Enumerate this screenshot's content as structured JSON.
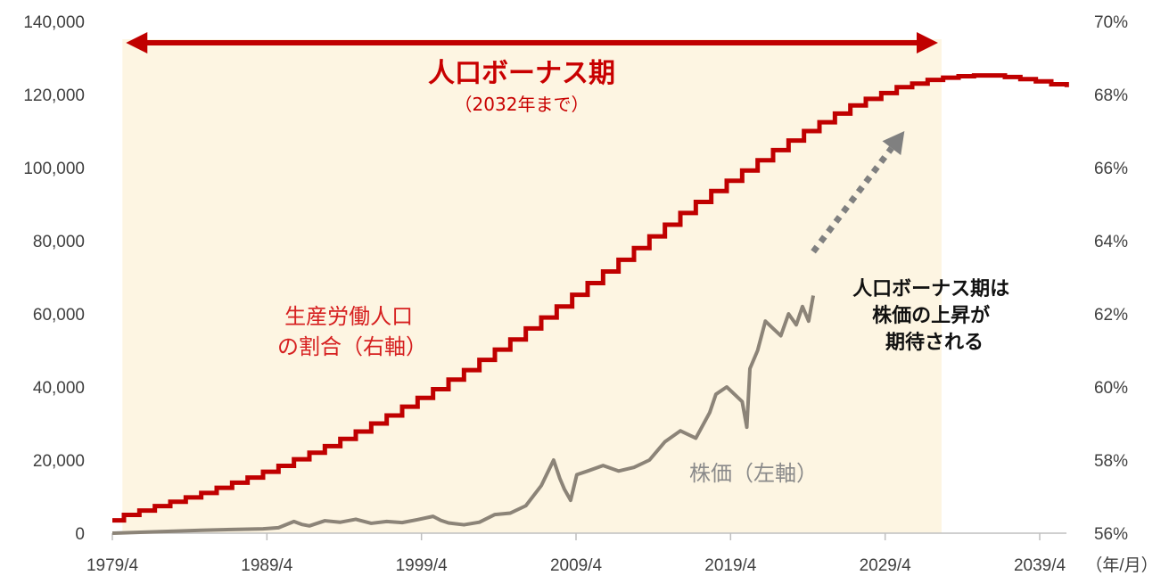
{
  "chart_data": {
    "type": "line",
    "title": "",
    "xlabel": "",
    "x_unit_label": "（年/月）",
    "x_ticks": [
      "1979/4",
      "1989/4",
      "1999/4",
      "2009/4",
      "2019/4",
      "2029/4",
      "2039/4"
    ],
    "x_range": [
      1979.25,
      2041.0
    ],
    "y_left": {
      "range": [
        0,
        140000
      ],
      "ticks": [
        "0",
        "20,000",
        "40,000",
        "60,000",
        "80,000",
        "100,000",
        "120,000",
        "140,000"
      ]
    },
    "y_right": {
      "range": [
        56,
        70
      ],
      "ticks": [
        "56%",
        "58%",
        "60%",
        "62%",
        "64%",
        "66%",
        "68%",
        "70%"
      ]
    },
    "grid": false,
    "highlight_period": {
      "label": "人口ボーナス期",
      "sublabel": "（2032年まで）",
      "x_start": 1979.9,
      "x_end": 2032.9,
      "color": "#fdf5e2"
    },
    "annotation": {
      "lines": [
        "人口ボーナス期は",
        "株価の上昇が",
        "期待される"
      ],
      "arrow_from": [
        2024.6,
        63.7
      ],
      "arrow_to": [
        2030.5,
        67.0
      ]
    },
    "series": [
      {
        "name": "生産労働人口の割合（右軸）",
        "axis": "right",
        "color": "#c00000",
        "style": "step",
        "x": [
          1979.25,
          1980,
          1981,
          1982,
          1983,
          1984,
          1985,
          1986,
          1987,
          1988,
          1989,
          1990,
          1991,
          1992,
          1993,
          1994,
          1995,
          1996,
          1997,
          1998,
          1999,
          2000,
          2001,
          2002,
          2003,
          2004,
          2005,
          2006,
          2007,
          2008,
          2009,
          2010,
          2011,
          2012,
          2013,
          2014,
          2015,
          2016,
          2017,
          2018,
          2019,
          2020,
          2021,
          2022,
          2023,
          2024,
          2025,
          2026,
          2027,
          2028,
          2029,
          2030,
          2031,
          2032,
          2033,
          2034,
          2035,
          2036,
          2037,
          2038,
          2039,
          2040,
          2041
        ],
        "values": [
          56.35,
          56.5,
          56.62,
          56.74,
          56.86,
          56.98,
          57.1,
          57.24,
          57.38,
          57.52,
          57.68,
          57.84,
          58.02,
          58.2,
          58.38,
          58.58,
          58.78,
          59.0,
          59.22,
          59.46,
          59.7,
          59.94,
          60.2,
          60.46,
          60.74,
          61.02,
          61.3,
          61.6,
          61.9,
          62.2,
          62.52,
          62.84,
          63.16,
          63.48,
          63.8,
          64.12,
          64.44,
          64.76,
          65.06,
          65.36,
          65.64,
          65.92,
          66.2,
          66.48,
          66.74,
          67.0,
          67.24,
          67.48,
          67.7,
          67.88,
          68.04,
          68.2,
          68.3,
          68.4,
          68.46,
          68.5,
          68.52,
          68.52,
          68.48,
          68.42,
          68.36,
          68.28,
          68.2
        ]
      },
      {
        "name": "株価（左軸）",
        "axis": "left",
        "color": "#8c8478",
        "style": "line",
        "x": [
          1979.25,
          1985,
          1989,
          1990,
          1991,
          1991.5,
          1992,
          1993,
          1994,
          1995,
          1996,
          1997,
          1998,
          1999,
          2000,
          2000.5,
          2001,
          2002,
          2003,
          2004,
          2005,
          2006,
          2007,
          2007.8,
          2008.2,
          2008.5,
          2008.9,
          2009.3,
          2010,
          2011,
          2012,
          2013,
          2014,
          2015,
          2016,
          2017,
          2017.9,
          2018.3,
          2019,
          2019.5,
          2020,
          2020.3,
          2020.5,
          2021,
          2021.5,
          2022,
          2022.5,
          2023,
          2023.5,
          2023.9,
          2024.3,
          2024.6
        ],
        "values": [
          0,
          800,
          1200,
          1500,
          3200,
          2400,
          2000,
          3400,
          3000,
          3800,
          2700,
          3200,
          2900,
          3700,
          4600,
          3500,
          2800,
          2300,
          3000,
          5100,
          5500,
          7500,
          13000,
          20000,
          15000,
          12000,
          9000,
          16000,
          17000,
          18500,
          17000,
          18000,
          20000,
          25000,
          28000,
          26000,
          33000,
          38000,
          40000,
          38000,
          36000,
          29000,
          45000,
          50000,
          58000,
          56000,
          54000,
          60000,
          57000,
          62000,
          58000,
          65000
        ]
      }
    ]
  }
}
